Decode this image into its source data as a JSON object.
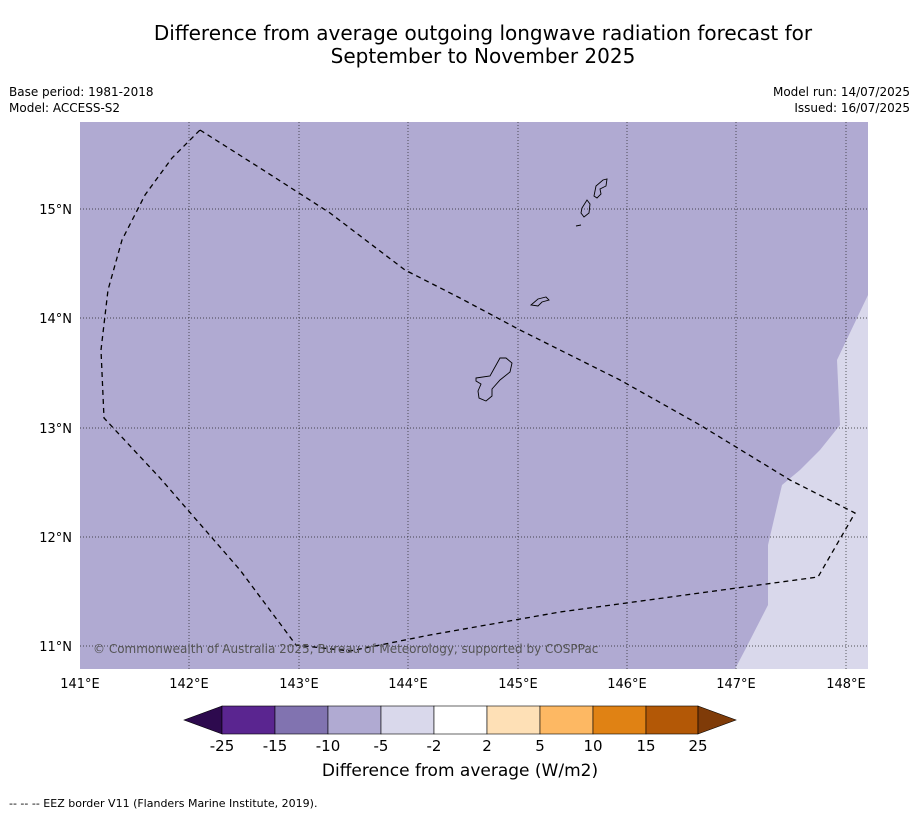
{
  "title_line1": "Difference from average outgoing longwave radiation forecast for",
  "title_line2": "September to November 2025",
  "meta_left": {
    "base_period": "Base period: 1981-2018",
    "model": "Model: ACCESS-S2"
  },
  "meta_right": {
    "model_run": "Model run: 14/07/2025",
    "issued": "Issued: 16/07/2025"
  },
  "map": {
    "lon_ticks": [
      "141°E",
      "142°E",
      "143°E",
      "144°E",
      "145°E",
      "146°E",
      "147°E",
      "148°E"
    ],
    "lat_ticks": [
      "15°N",
      "14°N",
      "13°N",
      "12°N",
      "11°N"
    ],
    "copyright": "© Commonwealth of Australia 2025, Bureau of Meteorology, supported by COSPPac",
    "colors": {
      "anomaly_minus5_minus10": "#b0aad2",
      "anomaly_minus2_minus5": "#d9d8eb"
    }
  },
  "colorbar": {
    "labels": [
      "-25",
      "-15",
      "-10",
      "-5",
      "-2",
      "2",
      "5",
      "10",
      "15",
      "25"
    ],
    "colors": [
      "#2d0a4e",
      "#5a2590",
      "#8173b0",
      "#b0aad2",
      "#d9d8eb",
      "#ffffff",
      "#fee0b6",
      "#fdb863",
      "#e08214",
      "#b35806",
      "#7f3b08"
    ],
    "title": "Difference from average (W/m2)"
  },
  "footnote": "--  --  -- EEZ border V11 (Flanders Marine Institute, 2019)."
}
